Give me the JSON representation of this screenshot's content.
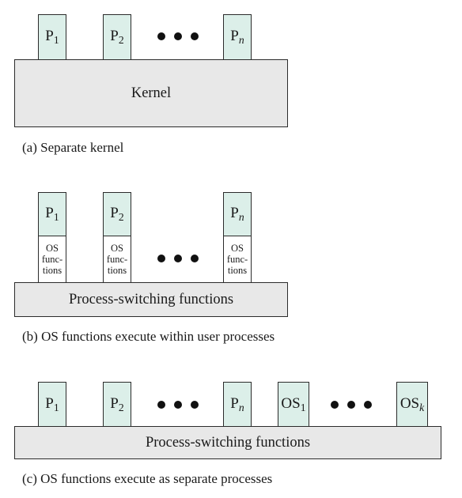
{
  "panels": {
    "a": {
      "processes": [
        {
          "base": "P",
          "sub": "1",
          "sub_italic": false
        },
        {
          "base": "P",
          "sub": "2",
          "sub_italic": false
        },
        {
          "base": "P",
          "sub": "n",
          "sub_italic": true
        }
      ],
      "kernel_label": "Kernel",
      "caption": "(a) Separate kernel"
    },
    "b": {
      "processes": [
        {
          "base": "P",
          "sub": "1",
          "sub_italic": false
        },
        {
          "base": "P",
          "sub": "2",
          "sub_italic": false
        },
        {
          "base": "P",
          "sub": "n",
          "sub_italic": true
        }
      ],
      "os_functions_lines": [
        "OS",
        "func-",
        "tions"
      ],
      "bar_label": "Process-switching functions",
      "caption": "(b) OS functions execute within user processes"
    },
    "c": {
      "processes": [
        {
          "base": "P",
          "sub": "1",
          "sub_italic": false
        },
        {
          "base": "P",
          "sub": "2",
          "sub_italic": false
        },
        {
          "base": "P",
          "sub": "n",
          "sub_italic": true
        }
      ],
      "os_processes": [
        {
          "base": "OS",
          "sub": "1",
          "sub_italic": false
        },
        {
          "base": "OS",
          "sub": "k",
          "sub_italic": true
        }
      ],
      "bar_label": "Process-switching functions",
      "caption": "(c) OS functions execute as separate processes"
    }
  },
  "colors": {
    "process_fill": "#dcefe9",
    "bar_fill": "#e8e8e8",
    "outline": "#2b2b2b"
  }
}
